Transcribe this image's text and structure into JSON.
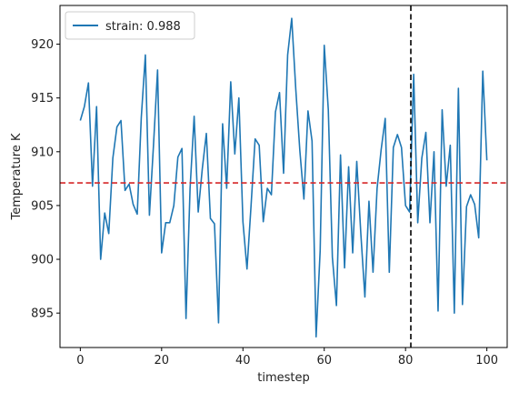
{
  "chart_data": {
    "type": "line",
    "xlabel": "timestep",
    "ylabel": "Temperature K",
    "xlim": [
      -5,
      105
    ],
    "ylim": [
      891.8,
      923.6
    ],
    "xticks": [
      0,
      20,
      40,
      60,
      80,
      100
    ],
    "yticks": [
      895,
      900,
      905,
      910,
      915,
      920
    ],
    "grid": false,
    "legend_position": "top-left",
    "series": [
      {
        "name": "strain: 0.988",
        "color": "#1f77b4",
        "x": [
          0,
          1,
          2,
          3,
          4,
          5,
          6,
          7,
          8,
          9,
          10,
          11,
          12,
          13,
          14,
          15,
          16,
          17,
          18,
          19,
          20,
          21,
          22,
          23,
          24,
          25,
          26,
          27,
          28,
          29,
          30,
          31,
          32,
          33,
          34,
          35,
          36,
          37,
          38,
          39,
          40,
          41,
          42,
          43,
          44,
          45,
          46,
          47,
          48,
          49,
          50,
          51,
          52,
          53,
          54,
          55,
          56,
          57,
          58,
          59,
          60,
          61,
          62,
          63,
          64,
          65,
          66,
          67,
          68,
          69,
          70,
          71,
          72,
          73,
          74,
          75,
          76,
          77,
          78,
          79,
          80,
          81,
          82,
          83,
          84,
          85,
          86,
          87,
          88,
          89,
          90,
          91,
          92,
          93,
          94,
          95,
          96,
          97,
          98,
          99,
          100
        ],
        "y": [
          912.9,
          914.2,
          916.4,
          906.8,
          914.2,
          900.0,
          904.3,
          902.4,
          909.4,
          912.3,
          912.9,
          906.4,
          907.0,
          905.1,
          904.2,
          913.2,
          919.0,
          904.1,
          910.6,
          917.6,
          900.6,
          903.4,
          903.4,
          905.0,
          909.5,
          910.3,
          894.5,
          906.6,
          913.3,
          904.4,
          908.4,
          911.7,
          903.8,
          903.3,
          894.1,
          912.6,
          906.6,
          916.5,
          909.8,
          915.0,
          903.5,
          899.1,
          905.0,
          911.2,
          910.6,
          903.5,
          906.6,
          906.0,
          913.7,
          915.5,
          908.0,
          919.0,
          922.4,
          915.8,
          910.1,
          905.6,
          913.8,
          911.0,
          892.8,
          900.8,
          919.9,
          913.9,
          900.2,
          895.7,
          909.7,
          899.2,
          908.6,
          900.6,
          909.1,
          902.4,
          896.5,
          905.4,
          898.8,
          906.6,
          910.2,
          913.1,
          898.8,
          910.4,
          911.6,
          910.4,
          905.0,
          904.4,
          917.2,
          903.4,
          909.4,
          911.8,
          903.4,
          910.0,
          895.2,
          913.9,
          906.8,
          910.6,
          895.0,
          915.9,
          895.8,
          904.9,
          906.0,
          905.1,
          902.0,
          917.5,
          909.2
        ]
      }
    ],
    "reference_lines": [
      {
        "orientation": "horizontal",
        "value": 907.1,
        "color": "#d62728",
        "style": "dashed"
      },
      {
        "orientation": "vertical",
        "value": 81.3,
        "color": "#000000",
        "style": "dashed"
      }
    ]
  }
}
